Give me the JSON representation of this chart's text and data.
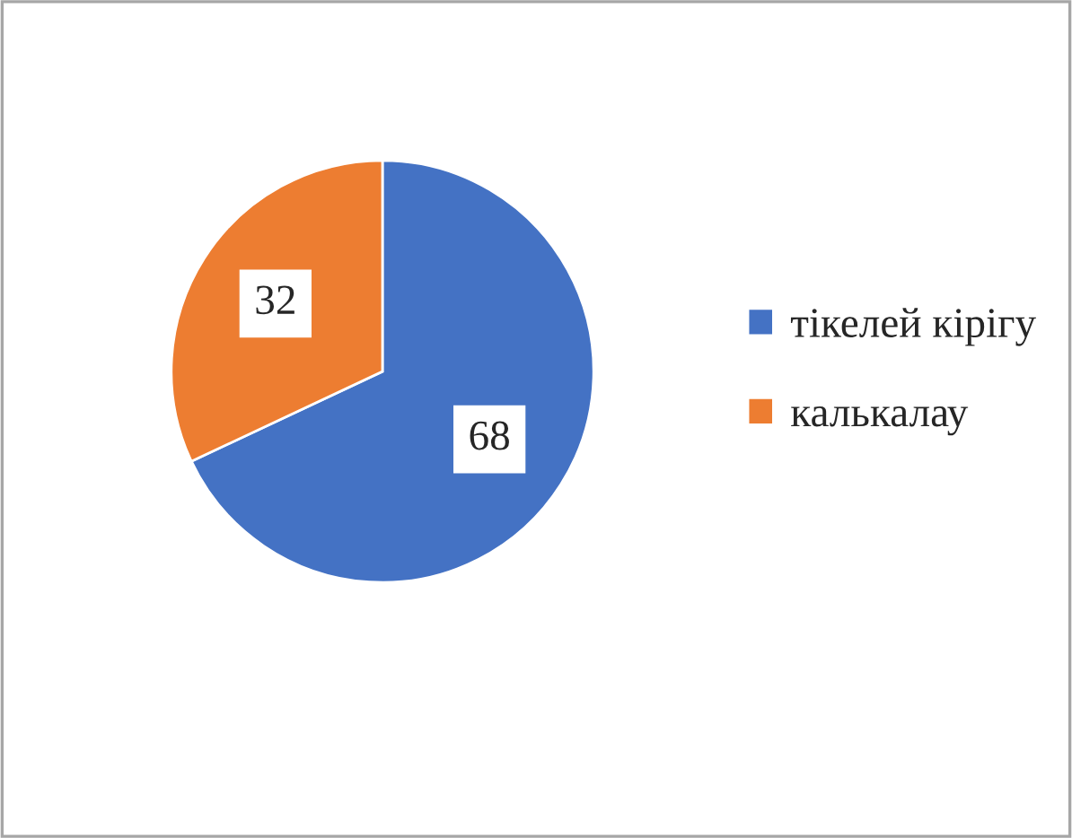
{
  "chart_data": {
    "type": "pie",
    "categories": [
      "тікелей кірігу",
      "калькалау"
    ],
    "values": [
      68,
      32
    ],
    "colors": [
      "#4472c4",
      "#ed7d31"
    ],
    "data_labels": true,
    "legend": "right"
  }
}
